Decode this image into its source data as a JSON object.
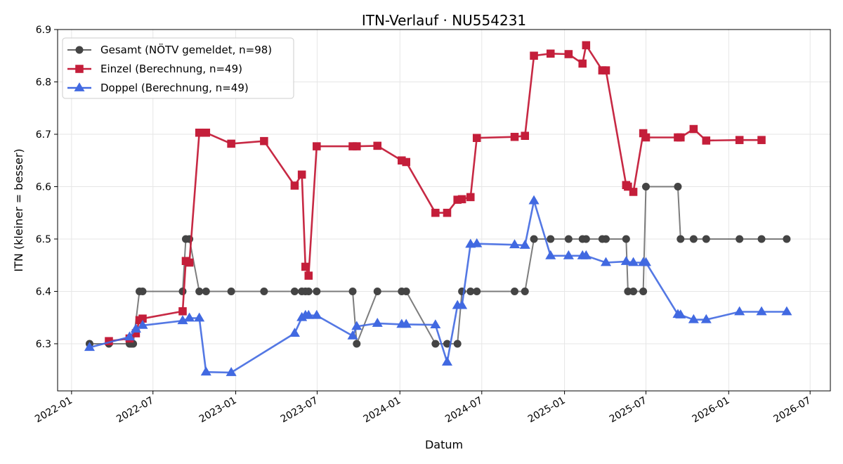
{
  "chart_data": {
    "type": "line",
    "title": "ITN-Verlauf · NU554231",
    "xlabel": "Datum",
    "ylabel": "ITN  (kleiner = besser)",
    "x_type": "date",
    "xlim": [
      "2021-12-01",
      "2026-08-15"
    ],
    "ylim": [
      6.21,
      6.9
    ],
    "x_ticks": [
      "2022-01-01",
      "2022-07-01",
      "2023-01-01",
      "2023-07-01",
      "2024-01-01",
      "2024-07-01",
      "2025-01-01",
      "2025-07-01",
      "2026-01-01",
      "2026-07-01"
    ],
    "x_tick_labels": [
      "2022-01",
      "2022-07",
      "2023-01",
      "2023-07",
      "2024-01",
      "2024-07",
      "2025-01",
      "2025-07",
      "2026-01",
      "2026-07"
    ],
    "y_ticks": [
      6.3,
      6.4,
      6.5,
      6.6,
      6.7,
      6.8,
      6.9
    ],
    "y_tick_labels": [
      "6.3",
      "6.4",
      "6.5",
      "6.6",
      "6.7",
      "6.8",
      "6.9"
    ],
    "grid": true,
    "legend_position": "top-left",
    "series": [
      {
        "name": "Gesamt (NÖTV gemeldet, n=98)",
        "color": "#666666",
        "marker_color": "#444444",
        "marker": "circle",
        "points": [
          [
            "2022-02-10",
            6.3
          ],
          [
            "2022-03-25",
            6.3
          ],
          [
            "2022-05-10",
            6.3
          ],
          [
            "2022-05-14",
            6.3
          ],
          [
            "2022-05-18",
            6.3
          ],
          [
            "2022-06-01",
            6.4
          ],
          [
            "2022-06-08",
            6.4
          ],
          [
            "2022-09-05",
            6.4
          ],
          [
            "2022-09-12",
            6.5
          ],
          [
            "2022-09-20",
            6.5
          ],
          [
            "2022-10-12",
            6.4
          ],
          [
            "2022-10-27",
            6.4
          ],
          [
            "2022-12-22",
            6.4
          ],
          [
            "2023-03-05",
            6.4
          ],
          [
            "2023-05-12",
            6.4
          ],
          [
            "2023-05-28",
            6.4
          ],
          [
            "2023-06-05",
            6.4
          ],
          [
            "2023-06-12",
            6.4
          ],
          [
            "2023-06-30",
            6.4
          ],
          [
            "2023-09-18",
            6.4
          ],
          [
            "2023-09-27",
            6.3
          ],
          [
            "2023-11-12",
            6.4
          ],
          [
            "2024-01-05",
            6.4
          ],
          [
            "2024-01-15",
            6.4
          ],
          [
            "2024-03-20",
            6.3
          ],
          [
            "2024-04-15",
            6.3
          ],
          [
            "2024-05-08",
            6.3
          ],
          [
            "2024-05-18",
            6.4
          ],
          [
            "2024-06-06",
            6.4
          ],
          [
            "2024-06-20",
            6.4
          ],
          [
            "2024-09-12",
            6.4
          ],
          [
            "2024-10-05",
            6.4
          ],
          [
            "2024-10-25",
            6.5
          ],
          [
            "2024-12-01",
            6.5
          ],
          [
            "2025-01-10",
            6.5
          ],
          [
            "2025-02-10",
            6.5
          ],
          [
            "2025-02-18",
            6.5
          ],
          [
            "2025-03-26",
            6.5
          ],
          [
            "2025-04-03",
            6.5
          ],
          [
            "2025-05-18",
            6.5
          ],
          [
            "2025-05-22",
            6.4
          ],
          [
            "2025-06-03",
            6.4
          ],
          [
            "2025-06-25",
            6.4
          ],
          [
            "2025-07-01",
            6.6
          ],
          [
            "2025-09-10",
            6.6
          ],
          [
            "2025-09-16",
            6.5
          ],
          [
            "2025-10-15",
            6.5
          ],
          [
            "2025-11-12",
            6.5
          ],
          [
            "2026-01-25",
            6.5
          ],
          [
            "2026-03-15",
            6.5
          ],
          [
            "2026-05-10",
            6.5
          ]
        ]
      },
      {
        "name": "Einzel (Berechnung, n=49)",
        "color": "#c41e3a",
        "marker_color": "#c41e3a",
        "marker": "square",
        "points": [
          [
            "2022-03-25",
            6.305
          ],
          [
            "2022-05-10",
            6.31
          ],
          [
            "2022-05-24",
            6.32
          ],
          [
            "2022-06-01",
            6.345
          ],
          [
            "2022-06-08",
            6.348
          ],
          [
            "2022-09-05",
            6.362
          ],
          [
            "2022-09-12",
            6.458
          ],
          [
            "2022-09-20",
            6.455
          ],
          [
            "2022-10-12",
            6.703
          ],
          [
            "2022-10-27",
            6.703
          ],
          [
            "2022-12-22",
            6.682
          ],
          [
            "2023-03-05",
            6.687
          ],
          [
            "2023-05-12",
            6.602
          ],
          [
            "2023-05-28",
            6.623
          ],
          [
            "2023-06-05",
            6.447
          ],
          [
            "2023-06-12",
            6.43
          ],
          [
            "2023-06-30",
            6.677
          ],
          [
            "2023-09-18",
            6.677
          ],
          [
            "2023-09-27",
            6.677
          ],
          [
            "2023-11-12",
            6.678
          ],
          [
            "2024-01-05",
            6.65
          ],
          [
            "2024-01-15",
            6.647
          ],
          [
            "2024-03-20",
            6.55
          ],
          [
            "2024-04-15",
            6.55
          ],
          [
            "2024-05-08",
            6.575
          ],
          [
            "2024-05-18",
            6.576
          ],
          [
            "2024-06-06",
            6.58
          ],
          [
            "2024-06-20",
            6.693
          ],
          [
            "2024-09-12",
            6.695
          ],
          [
            "2024-10-05",
            6.697
          ],
          [
            "2024-10-25",
            6.85
          ],
          [
            "2024-12-01",
            6.854
          ],
          [
            "2025-01-10",
            6.853
          ],
          [
            "2025-02-10",
            6.835
          ],
          [
            "2025-02-18",
            6.87
          ],
          [
            "2025-03-26",
            6.822
          ],
          [
            "2025-04-03",
            6.822
          ],
          [
            "2025-05-18",
            6.603
          ],
          [
            "2025-05-22",
            6.6
          ],
          [
            "2025-06-03",
            6.59
          ],
          [
            "2025-06-25",
            6.702
          ],
          [
            "2025-07-01",
            6.694
          ],
          [
            "2025-09-10",
            6.694
          ],
          [
            "2025-09-16",
            6.694
          ],
          [
            "2025-10-15",
            6.71
          ],
          [
            "2025-11-12",
            6.688
          ],
          [
            "2026-01-25",
            6.689
          ],
          [
            "2026-03-15",
            6.689
          ]
        ]
      },
      {
        "name": "Doppel (Berechnung, n=49)",
        "color": "#4169e1",
        "marker_color": "#4169e1",
        "marker": "triangle",
        "points": [
          [
            "2022-02-10",
            6.293
          ],
          [
            "2022-05-10",
            6.313
          ],
          [
            "2022-05-24",
            6.328
          ],
          [
            "2022-06-08",
            6.335
          ],
          [
            "2022-09-05",
            6.344
          ],
          [
            "2022-09-20",
            6.349
          ],
          [
            "2022-10-12",
            6.349
          ],
          [
            "2022-10-27",
            6.246
          ],
          [
            "2022-12-22",
            6.245
          ],
          [
            "2023-05-12",
            6.32
          ],
          [
            "2023-05-28",
            6.35
          ],
          [
            "2023-06-05",
            6.354
          ],
          [
            "2023-06-12",
            6.354
          ],
          [
            "2023-06-30",
            6.354
          ],
          [
            "2023-09-18",
            6.315
          ],
          [
            "2023-09-27",
            6.333
          ],
          [
            "2023-11-12",
            6.339
          ],
          [
            "2024-01-05",
            6.337
          ],
          [
            "2024-01-15",
            6.337
          ],
          [
            "2024-03-20",
            6.336
          ],
          [
            "2024-04-15",
            6.265
          ],
          [
            "2024-05-08",
            6.373
          ],
          [
            "2024-05-18",
            6.373
          ],
          [
            "2024-06-06",
            6.49
          ],
          [
            "2024-06-20",
            6.491
          ],
          [
            "2024-09-12",
            6.489
          ],
          [
            "2024-10-05",
            6.488
          ],
          [
            "2024-10-25",
            6.573
          ],
          [
            "2024-12-01",
            6.468
          ],
          [
            "2025-01-10",
            6.468
          ],
          [
            "2025-02-10",
            6.468
          ],
          [
            "2025-02-18",
            6.468
          ],
          [
            "2025-04-03",
            6.455
          ],
          [
            "2025-05-18",
            6.457
          ],
          [
            "2025-06-03",
            6.455
          ],
          [
            "2025-06-25",
            6.455
          ],
          [
            "2025-07-01",
            6.455
          ],
          [
            "2025-09-10",
            6.356
          ],
          [
            "2025-09-16",
            6.355
          ],
          [
            "2025-10-15",
            6.346
          ],
          [
            "2025-11-12",
            6.346
          ],
          [
            "2026-01-25",
            6.361
          ],
          [
            "2026-03-15",
            6.361
          ],
          [
            "2026-05-10",
            6.361
          ]
        ]
      }
    ]
  }
}
